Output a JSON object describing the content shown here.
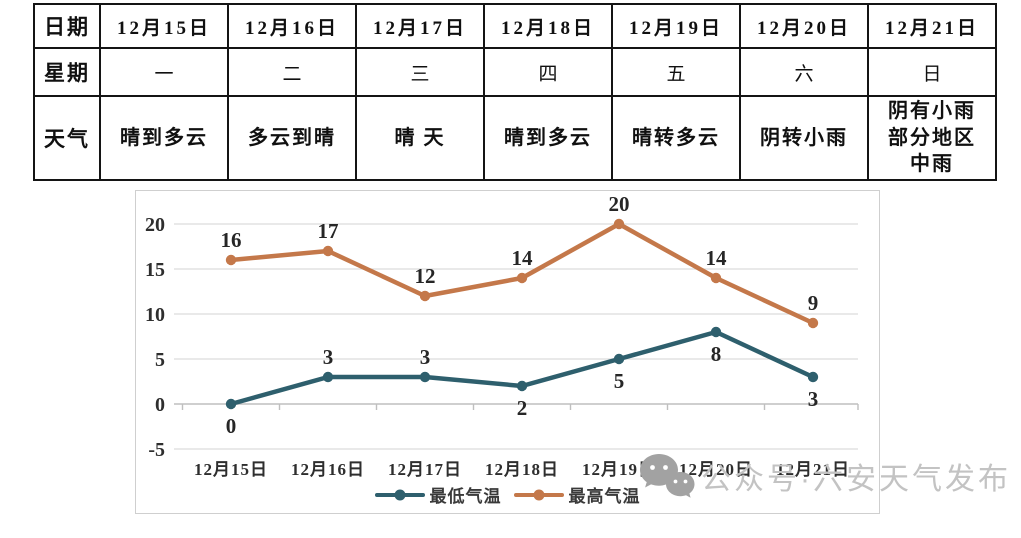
{
  "table": {
    "row_headers": [
      "日期",
      "星期",
      "天气"
    ],
    "dates": [
      "12月15日",
      "12月16日",
      "12月17日",
      "12月18日",
      "12月19日",
      "12月20日",
      "12月21日"
    ],
    "weekdays": [
      "一",
      "二",
      "三",
      "四",
      "五",
      "六",
      "日"
    ],
    "weather": [
      "晴到多云",
      "多云到晴",
      "晴 天",
      "晴到多云",
      "晴转多云",
      "阴转小雨",
      "阴有小雨\n部分地区\n中雨"
    ]
  },
  "chart_data": {
    "type": "line",
    "categories": [
      "12月15日",
      "12月16日",
      "12月17日",
      "12月18日",
      "12月19日",
      "12月20日",
      "12月21日"
    ],
    "series": [
      {
        "name": "最低气温",
        "color": "#2e5f6d",
        "values": [
          0,
          3,
          3,
          2,
          5,
          8,
          3
        ],
        "label_sides": [
          "below",
          "above",
          "above",
          "below",
          "below",
          "below",
          "below"
        ]
      },
      {
        "name": "最高气温",
        "color": "#c4784a",
        "values": [
          16,
          17,
          12,
          14,
          20,
          14,
          9
        ],
        "label_sides": [
          "above",
          "above",
          "above",
          "above",
          "above",
          "above",
          "above"
        ]
      }
    ],
    "yticks": [
      20,
      15,
      10,
      5,
      0,
      -5
    ],
    "ylim": [
      -5,
      22
    ],
    "grid": true,
    "legend_position": "bottom",
    "title": "",
    "xlabel": "",
    "ylabel": ""
  },
  "watermark": {
    "text": "公众号·六安天气发布",
    "icon": "wechat-icon"
  },
  "colors": {
    "min_series": "#2e5f6d",
    "max_series": "#c4784a",
    "gridline": "#dcdcdc",
    "axis": "#bfbfbf",
    "watermark": "#c3c3c3"
  }
}
